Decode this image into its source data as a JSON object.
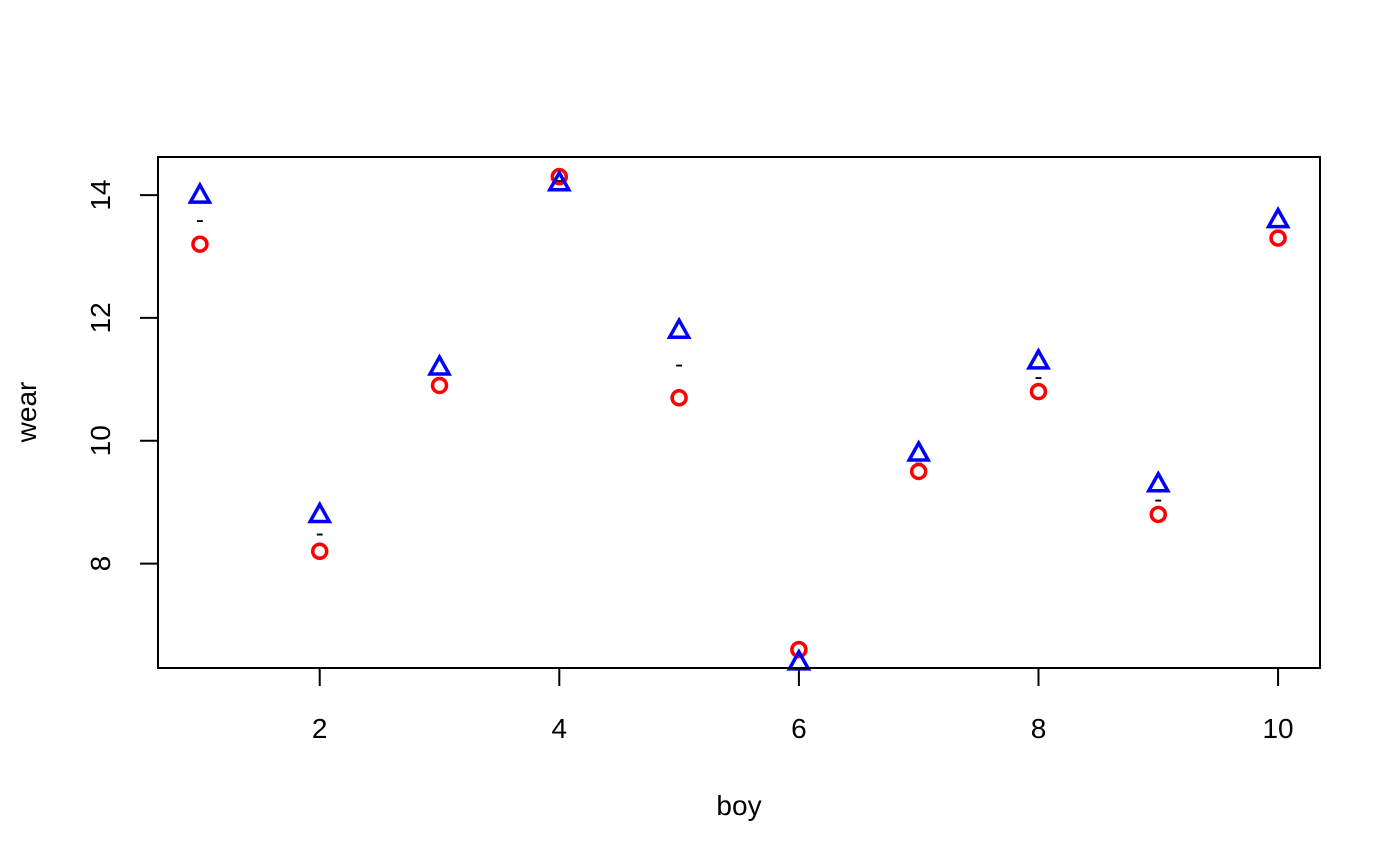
{
  "chart_data": {
    "type": "scatter",
    "title": "",
    "xlabel": "boy",
    "ylabel": "wear",
    "xlim": [
      0.65,
      10.35
    ],
    "ylim": [
      6.3,
      14.62
    ],
    "x_ticks": [
      2,
      4,
      6,
      8,
      10
    ],
    "x_tick_labels": [
      "2",
      "4",
      "6",
      "8",
      "10"
    ],
    "y_ticks": [
      8,
      10,
      12,
      14
    ],
    "y_tick_labels": [
      "8",
      "10",
      "12",
      "14"
    ],
    "grid": false,
    "x": [
      1,
      2,
      3,
      4,
      5,
      6,
      7,
      8,
      9,
      10
    ],
    "series": [
      {
        "marker": "circle",
        "color": "#ff0000",
        "values": [
          13.2,
          8.2,
          10.9,
          14.3,
          10.7,
          6.6,
          9.5,
          10.8,
          8.8,
          13.3
        ]
      },
      {
        "marker": "triangle",
        "color": "#0000ff",
        "values": [
          14.0,
          8.8,
          11.2,
          14.2,
          11.8,
          6.4,
          9.8,
          11.3,
          9.3,
          13.6
        ]
      }
    ],
    "mean_marker": {
      "label": "-",
      "values": [
        13.6,
        8.5,
        11.05,
        14.25,
        11.25,
        6.5,
        9.65,
        11.05,
        9.05,
        13.45
      ]
    }
  }
}
